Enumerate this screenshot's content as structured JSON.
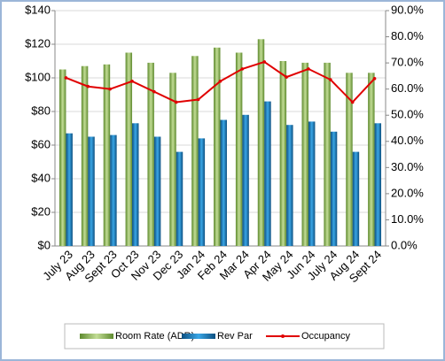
{
  "chart_data": {
    "type": "bar",
    "categories": [
      "July 23",
      "Aug 23",
      "Sept 23",
      "Oct 23",
      "Nov 23",
      "Dec 23",
      "Jan 24",
      "Feb 24",
      "Mar 24",
      "Apr 24",
      "May 24",
      "Jun 24",
      "July 24",
      "Aug 24",
      "Sept 24"
    ],
    "series": [
      {
        "name": "Room Rate (ADR)",
        "color": "#8db55a",
        "type": "bar",
        "values": [
          105,
          107,
          108,
          115,
          109,
          103,
          113,
          118,
          115,
          123,
          110,
          109,
          109,
          103,
          103
        ]
      },
      {
        "name": "Rev Par",
        "color": "#1a7ab8",
        "type": "bar",
        "values": [
          67,
          65,
          66,
          73,
          65,
          56,
          64,
          75,
          78,
          86,
          72,
          74,
          68,
          56,
          73
        ]
      },
      {
        "name": "Occupancy",
        "color": "#e00000",
        "type": "line",
        "axis": "y2",
        "values": [
          64.3,
          61,
          60,
          63,
          59,
          55,
          56,
          63,
          67.7,
          70.4,
          64.6,
          67.7,
          63.6,
          55,
          64
        ]
      }
    ],
    "ylim": [
      0,
      140
    ],
    "yticks": [
      {
        "value": 0,
        "label": "$0"
      },
      {
        "value": 20,
        "label": "$20"
      },
      {
        "value": 40,
        "label": "$40"
      },
      {
        "value": 60,
        "label": "$60"
      },
      {
        "value": 80,
        "label": "$80"
      },
      {
        "value": 100,
        "label": "$100"
      },
      {
        "value": 120,
        "label": "$120"
      },
      {
        "value": 140,
        "label": "$140"
      }
    ],
    "y2lim": [
      0,
      90
    ],
    "y2ticks": [
      {
        "value": 0,
        "label": "0.0%"
      },
      {
        "value": 10,
        "label": "10.0%"
      },
      {
        "value": 20,
        "label": "20.0%"
      },
      {
        "value": 30,
        "label": "30.0%"
      },
      {
        "value": 40,
        "label": "40.0%"
      },
      {
        "value": 50,
        "label": "50.0%"
      },
      {
        "value": 60,
        "label": "60.0%"
      },
      {
        "value": 70,
        "label": "70.0%"
      },
      {
        "value": 80,
        "label": "80.0%"
      },
      {
        "value": 90,
        "label": "90.0%"
      }
    ],
    "grid": true,
    "legend": "bottom"
  }
}
